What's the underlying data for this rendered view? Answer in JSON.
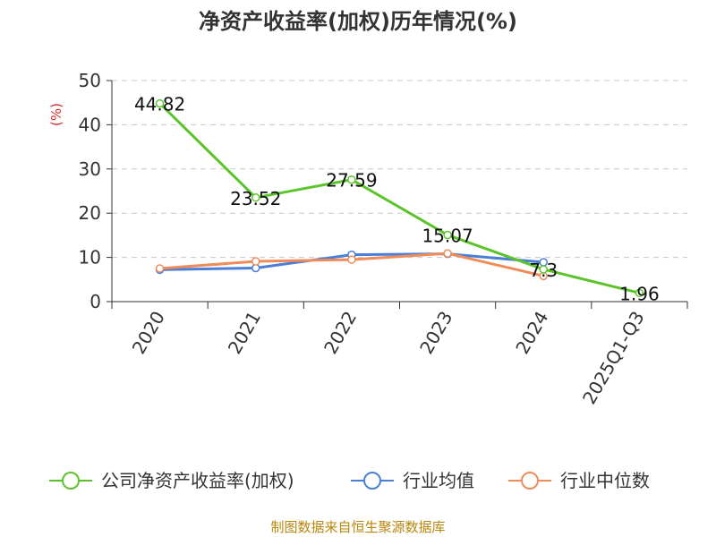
{
  "chart_data": {
    "type": "line",
    "title": "净资产收益率(加权)历年情况(%)",
    "ylabel": "(%)",
    "xlabel": "",
    "categories": [
      "2020",
      "2021",
      "2022",
      "2023",
      "2024",
      "2025Q1-Q3"
    ],
    "ylim": [
      0,
      50
    ],
    "yticks": [
      0,
      10,
      20,
      30,
      40,
      50
    ],
    "grid": "horizontal dashed",
    "legend_position": "bottom",
    "series": [
      {
        "name": "公司净资产收益率(加权)",
        "color": "#5cc42b",
        "values": [
          44.82,
          23.52,
          27.59,
          15.07,
          7.3,
          1.96
        ],
        "labels": [
          "44.82",
          "23.52",
          "27.59",
          "15.07",
          "7.3",
          "1.96"
        ]
      },
      {
        "name": "行业均值",
        "color": "#4a7fd8",
        "values": [
          7.2,
          7.6,
          10.6,
          10.8,
          8.9,
          null
        ]
      },
      {
        "name": "行业中位数",
        "color": "#f08c5a",
        "values": [
          7.5,
          9.1,
          9.5,
          10.9,
          5.8,
          null
        ]
      }
    ]
  },
  "source": "制图数据来自恒生聚源数据库"
}
